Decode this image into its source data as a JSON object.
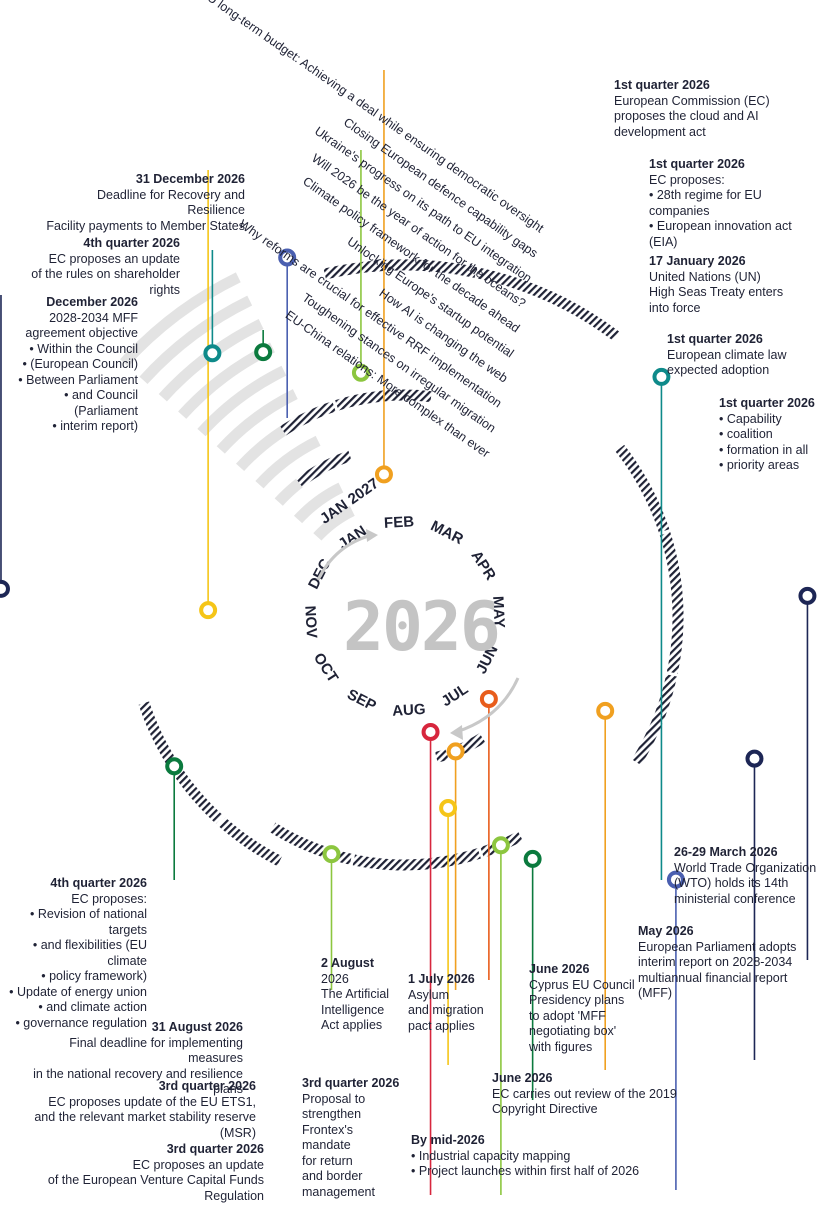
{
  "year": "2026",
  "months": [
    "JAN",
    "FEB",
    "MAR",
    "APR",
    "MAY",
    "JUN",
    "JUL",
    "AUG",
    "SEP",
    "OCT",
    "NOV",
    "DEC",
    "JAN 2027"
  ],
  "tracks": [
    {
      "title": "EU-China relations: More complex than ever",
      "color": "#d7263d"
    },
    {
      "title": "Toughening stances on irregular migration",
      "color": "#e85d1c"
    },
    {
      "title": "Why reforms are crucial for effective RRF implementation",
      "color": "#f0a020"
    },
    {
      "title": "How AI is changing the web",
      "color": "#f5c518"
    },
    {
      "title": "Unlocking Europe's startup potential",
      "color": "#8cc63f"
    },
    {
      "title": "Climate policy framework for the decade ahead",
      "color": "#3aa655"
    },
    {
      "title": "Will 2026 be the year of action for the oceans?",
      "color": "#0b7a3e"
    },
    {
      "title": "Ukraine's progress on its path to EU integration",
      "color": "#0e8a8a"
    },
    {
      "title": "Closing European defence capability gaps",
      "color": "#3cb4e6"
    },
    {
      "title": "Next EU long-term budget: Achieving a deal while ensuring democratic oversight",
      "color": "#4a5fb0"
    }
  ],
  "outer_ring_color": "#1d2655",
  "annotations": [
    {
      "id": "dec-31",
      "date": "31 December 2026",
      "lines": [
        "Deadline for Recovery and Resilience",
        "Facility payments to Member States"
      ],
      "bullets": []
    },
    {
      "id": "q4-shareholder",
      "date": "4th quarter 2026",
      "lines": [
        "EC proposes an update",
        "of the rules on shareholder rights"
      ],
      "bullets": []
    },
    {
      "id": "dec-mff",
      "date": "December 2026",
      "lines": [
        "2028-2034 MFF",
        "agreement objective"
      ],
      "bullets": [
        "Within the Council",
        "(European Council)",
        "Between Parliament",
        "and Council (Parliament",
        "interim report)"
      ]
    },
    {
      "id": "q1-cloud",
      "date": "1st quarter 2026",
      "lines": [
        "European Commission (EC)",
        "proposes the cloud and AI",
        "development act"
      ],
      "bullets": []
    },
    {
      "id": "q1-28th",
      "date": "1st quarter 2026",
      "lines": [
        "EC proposes:"
      ],
      "bullets": [
        "28th regime for EU companies",
        "European innovation act (EIA)"
      ]
    },
    {
      "id": "jan-17",
      "date": "17 January 2026",
      "lines": [
        "United Nations (UN)",
        "High Seas Treaty enters",
        "into force"
      ],
      "bullets": []
    },
    {
      "id": "q1-climate",
      "date": "1st quarter 2026",
      "lines": [
        "European climate law",
        "expected  adoption"
      ],
      "bullets": []
    },
    {
      "id": "q1-capability",
      "date": "1st quarter 2026",
      "lines": [],
      "bullets": [
        "Capability",
        "coalition",
        "formation in all",
        "priority areas"
      ]
    },
    {
      "id": "mar-wto",
      "date": "26-29 March 2026",
      "lines": [
        "World Trade Organization",
        "(WTO) holds its 14th",
        "ministerial conference"
      ],
      "bullets": []
    },
    {
      "id": "may-ep",
      "date": "May 2026",
      "lines": [
        "European Parliament adopts",
        "interim report on 2028-2034",
        "multiannual financial report (MFF)"
      ],
      "bullets": []
    },
    {
      "id": "jun-cyprus",
      "date": "June 2026",
      "lines": [
        "Cyprus EU Council",
        "Presidency plans",
        "to adopt 'MFF",
        "negotiating box'",
        "with figures"
      ],
      "bullets": []
    },
    {
      "id": "jul-asylum",
      "date": "1 July 2026",
      "lines": [
        "Asylum",
        "and migration",
        "pact applies"
      ],
      "bullets": []
    },
    {
      "id": "aug-ai",
      "date": "2 August",
      "lines": [
        "2026",
        "The Artificial",
        "Intelligence",
        "Act applies"
      ],
      "bullets": []
    },
    {
      "id": "q4-climate",
      "date": "4th quarter 2026",
      "lines": [
        "EC proposes:"
      ],
      "bullets": [
        "Revision of national targets",
        "and flexibilities (EU climate",
        "policy framework)",
        "Update of energy union",
        "and climate action",
        "governance regulation"
      ]
    },
    {
      "id": "aug-31",
      "date": "31 August 2026",
      "lines": [
        "Final deadline for implementing measures",
        "in the national recovery and resilience plans"
      ],
      "bullets": []
    },
    {
      "id": "q3-ets",
      "date": "3rd quarter 2026",
      "lines": [
        "EC proposes update of the EU ETS1,",
        "and the relevant market stability reserve (MSR)"
      ],
      "bullets": []
    },
    {
      "id": "q3-venture",
      "date": "3rd quarter 2026",
      "lines": [
        "EC proposes an update",
        "of the European Venture Capital Funds Regulation"
      ],
      "bullets": []
    },
    {
      "id": "q3-frontex",
      "date": "3rd quarter 2026",
      "lines": [
        "Proposal to",
        "strengthen",
        "Frontex's mandate",
        "for return",
        "and border",
        "management"
      ],
      "bullets": []
    },
    {
      "id": "jun-copyright",
      "date": "June 2026",
      "lines": [
        "EC carries out review of the 2019",
        "Copyright Directive"
      ],
      "bullets": []
    },
    {
      "id": "mid-industrial",
      "date": "By mid-2026",
      "lines": [],
      "bullets": [
        "Industrial capacity mapping",
        "Project launches within first half of 2026"
      ]
    }
  ]
}
